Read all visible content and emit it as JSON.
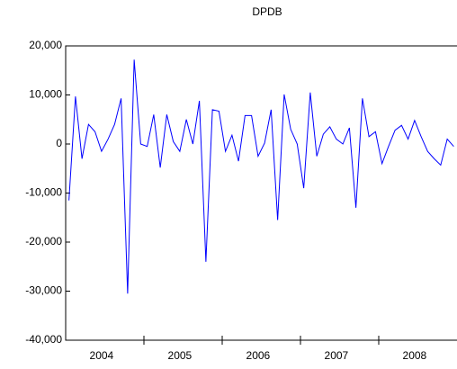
{
  "chart_data": {
    "type": "line",
    "title": "DPDB",
    "categories": [
      null,
      null,
      null,
      null,
      null,
      "2004",
      null,
      null,
      null,
      null,
      null,
      null,
      null,
      null,
      null,
      null,
      null,
      "2005",
      null,
      null,
      null,
      null,
      null,
      null,
      null,
      null,
      null,
      null,
      null,
      "2006",
      null,
      null,
      null,
      null,
      null,
      null,
      null,
      null,
      null,
      null,
      null,
      "2007",
      null,
      null,
      null,
      null,
      null,
      null,
      null,
      null,
      null,
      null,
      null,
      "2008",
      null,
      null,
      null,
      null,
      null,
      null
    ],
    "series": [
      {
        "name": "DPDB",
        "color": "#0000ff",
        "values": [
          -11500,
          9700,
          -3000,
          4000,
          2500,
          -1500,
          1000,
          4000,
          9300,
          -30500,
          17200,
          0,
          -500,
          6000,
          -4800,
          6000,
          500,
          -1500,
          5000,
          0,
          8800,
          -24000,
          7000,
          6700,
          -1500,
          1800,
          -3500,
          5800,
          5800,
          -2500,
          200,
          7000,
          -15500,
          10100,
          3000,
          0,
          -9000,
          10500,
          -2500,
          2000,
          3500,
          1000,
          0,
          3300,
          -13000,
          9300,
          1500,
          2500,
          -4000,
          -500,
          2800,
          3800,
          1000,
          4800,
          1500,
          -1500,
          -3000,
          -4300,
          1000,
          -500
        ]
      }
    ],
    "ylim": [
      -40000,
      20000
    ],
    "yticks": [
      {
        "value": -40000,
        "label": "-40,000"
      },
      {
        "value": -30000,
        "label": "-30,000"
      },
      {
        "value": -20000,
        "label": "-20,000"
      },
      {
        "value": -10000,
        "label": "-10,000"
      },
      0,
      {
        "value": 10000,
        "label": "10,000"
      },
      {
        "value": 20000,
        "label": "20,000"
      }
    ]
  }
}
